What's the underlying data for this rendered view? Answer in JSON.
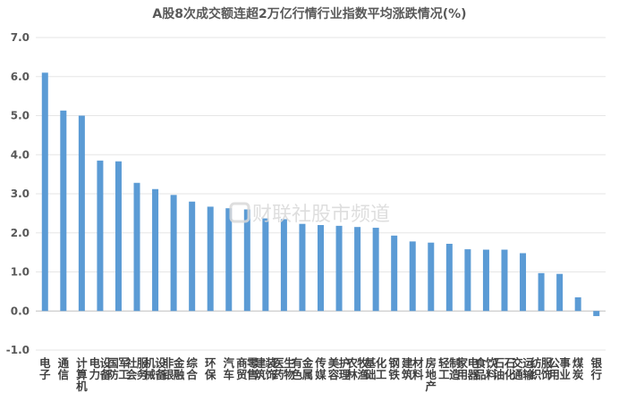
{
  "chart_data": {
    "type": "bar",
    "title": "A股8次成交额连超2万亿行情行业指数平均涨跌情况(%)",
    "xlabel": "",
    "ylabel": "",
    "ylim": [
      -1.0,
      7.0
    ],
    "yticks": [
      "7.0",
      "6.0",
      "5.0",
      "4.0",
      "3.0",
      "2.0",
      "1.0",
      "0.0",
      "-1.0"
    ],
    "grid": true,
    "legend": "none",
    "bar_color": "#5b9bd5",
    "categories": [
      "电子",
      "通信",
      "计算机",
      "电力设备",
      "国防军工",
      "社会服务",
      "机械设备",
      "非银金融",
      "综合",
      "环保",
      "汽车",
      "商贸零售",
      "建筑装饰",
      "医药生物",
      "有色金属",
      "传媒",
      "美容护理",
      "农林牧渔",
      "基础化工",
      "钢铁",
      "建筑材料",
      "房地产",
      "轻工制造",
      "家用电器",
      "食品饮料",
      "石油石化",
      "交通运输",
      "纺织服饰",
      "公用事业",
      "煤炭",
      "银行"
    ],
    "values": [
      6.1,
      5.13,
      5.0,
      3.85,
      3.83,
      3.28,
      3.12,
      2.97,
      2.8,
      2.67,
      2.63,
      2.6,
      2.37,
      2.35,
      2.23,
      2.2,
      2.18,
      2.15,
      2.13,
      1.93,
      1.78,
      1.75,
      1.72,
      1.58,
      1.57,
      1.57,
      1.48,
      0.97,
      0.95,
      0.35,
      -0.13
    ]
  },
  "watermark": {
    "text": "财联社股市频道",
    "icon": "cls-logo-icon"
  }
}
